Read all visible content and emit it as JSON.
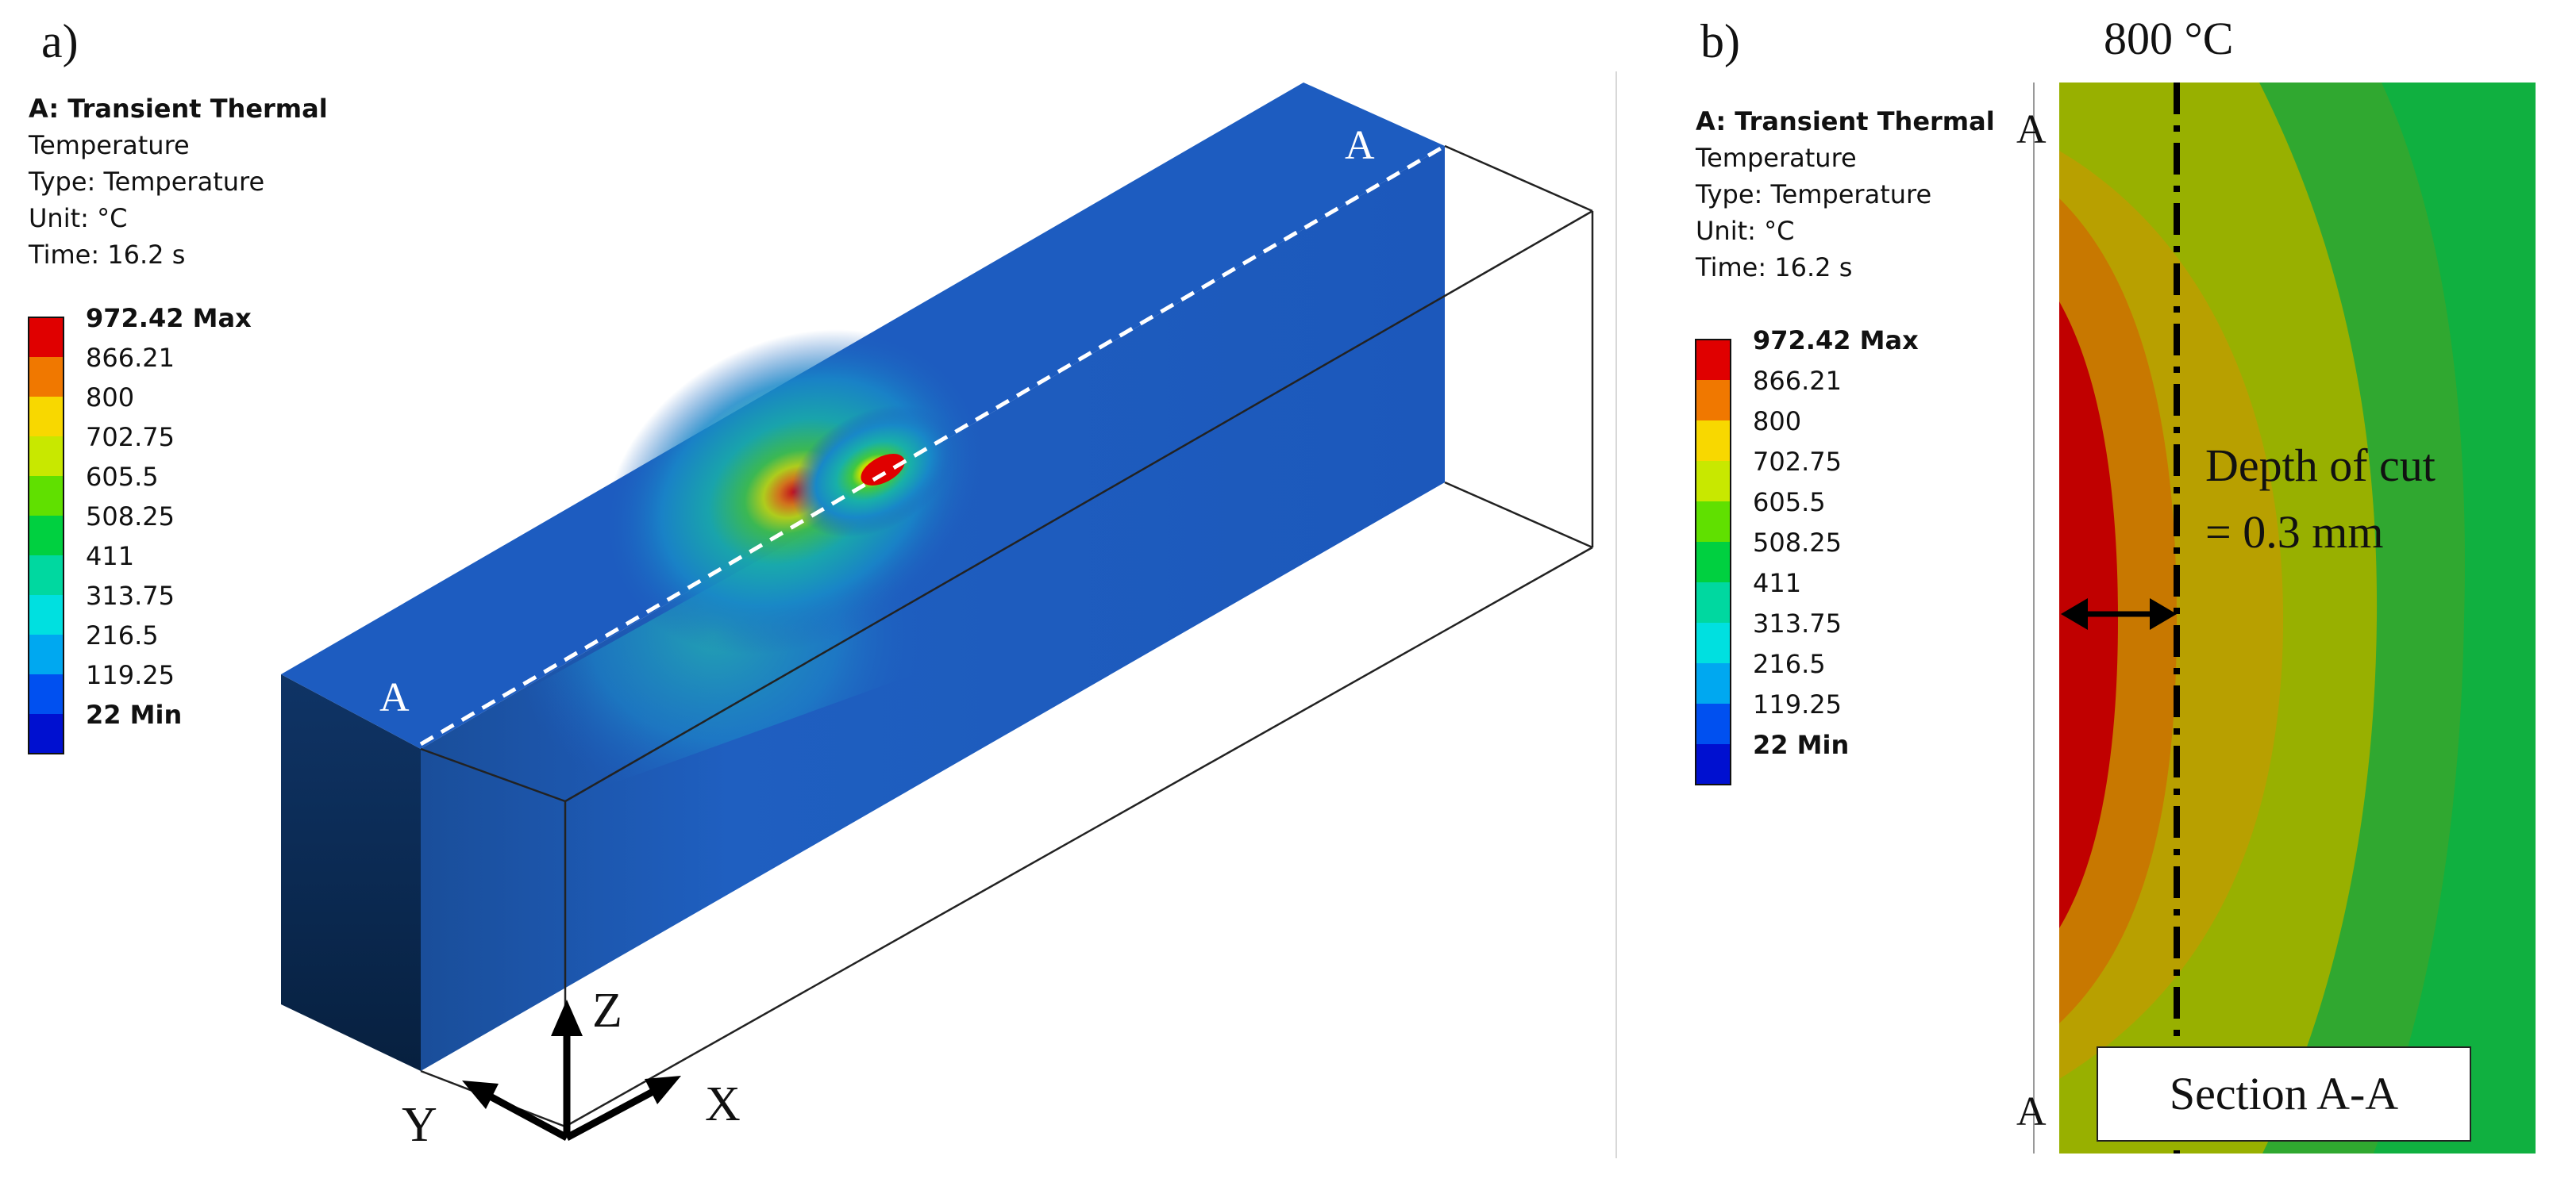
{
  "panel_a": {
    "letter": "a)",
    "header": {
      "title": "A: Transient Thermal",
      "line1": "Temperature",
      "line2": "Type: Temperature",
      "line3": "Unit: °C",
      "line4": "Time: 16.2 s"
    },
    "section_mark_top": "A",
    "section_mark_bottom": "A",
    "axes": {
      "z": "Z",
      "y": "Y",
      "x": "X"
    }
  },
  "panel_b": {
    "letter": "b)",
    "header": {
      "title": "A: Transient Thermal",
      "line1": "Temperature",
      "line2": "Type: Temperature",
      "line3": "Unit: °C",
      "line4": "Time: 16.2 s"
    },
    "isotherm_label": "800 °C",
    "depth_label_line1": "Depth of cut",
    "depth_label_line2": "= 0.3 mm",
    "section_label": "Section A-A",
    "section_mark_top": "A",
    "section_mark_bottom": "A"
  },
  "legend": {
    "entries": [
      {
        "label": "972.42 Max",
        "color": "#e00000"
      },
      {
        "label": "866.21",
        "color": "#f07800"
      },
      {
        "label": "800",
        "color": "#f8d800"
      },
      {
        "label": "702.75",
        "color": "#c8e800"
      },
      {
        "label": "605.5",
        "color": "#60e000"
      },
      {
        "label": "508.25",
        "color": "#00d040"
      },
      {
        "label": "411",
        "color": "#00d8a0"
      },
      {
        "label": "313.75",
        "color": "#00e0e0"
      },
      {
        "label": "216.5",
        "color": "#00a8f0"
      },
      {
        "label": "119.25",
        "color": "#0050f0"
      },
      {
        "label": "22 Min",
        "color": "#0010d0"
      }
    ]
  },
  "colors": {
    "workpiece_blue": "#1f5fbf",
    "end_face": "#0d2f5c",
    "hot_spot": "#e00000",
    "contour_dark_red": "#c00000",
    "contour_orange": "#c87800",
    "contour_gold": "#b8a000",
    "contour_olive": "#98b000",
    "contour_green": "#30a830"
  }
}
